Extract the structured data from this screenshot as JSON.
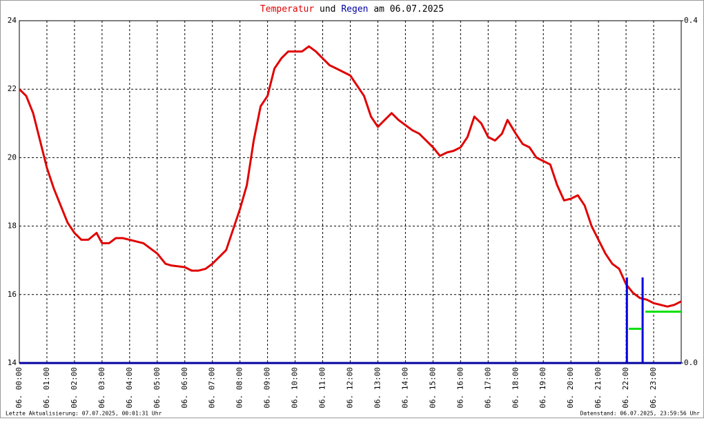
{
  "chart_data": {
    "type": "line",
    "title_temp": "Temperatur",
    "title_und": "und",
    "title_rain": "Regen",
    "title_date": "am 06.07.2025",
    "footer_left": "Letzte Aktualisierung: 07.07.2025, 00:01:31 Uhr",
    "footer_right": "Datenstand: 06.07.2025, 23:59:56 Uhr",
    "xlim": [
      0,
      24
    ],
    "xticks": [
      {
        "value": 0,
        "label": "06. 00:00"
      },
      {
        "value": 1,
        "label": "06. 01:00"
      },
      {
        "value": 2,
        "label": "06. 02:00"
      },
      {
        "value": 3,
        "label": "06. 03:00"
      },
      {
        "value": 4,
        "label": "06. 04:00"
      },
      {
        "value": 5,
        "label": "06. 05:00"
      },
      {
        "value": 6,
        "label": "06. 06:00"
      },
      {
        "value": 7,
        "label": "06. 07:00"
      },
      {
        "value": 8,
        "label": "06. 08:00"
      },
      {
        "value": 9,
        "label": "06. 09:00"
      },
      {
        "value": 10,
        "label": "06. 10:00"
      },
      {
        "value": 11,
        "label": "06. 11:00"
      },
      {
        "value": 12,
        "label": "06. 12:00"
      },
      {
        "value": 13,
        "label": "06. 13:00"
      },
      {
        "value": 14,
        "label": "06. 14:00"
      },
      {
        "value": 15,
        "label": "06. 15:00"
      },
      {
        "value": 16,
        "label": "06. 16:00"
      },
      {
        "value": 17,
        "label": "06. 17:00"
      },
      {
        "value": 18,
        "label": "06. 18:00"
      },
      {
        "value": 19,
        "label": "06. 19:00"
      },
      {
        "value": 20,
        "label": "06. 20:00"
      },
      {
        "value": 21,
        "label": "06. 21:00"
      },
      {
        "value": 22,
        "label": "06. 22:00"
      },
      {
        "value": 23,
        "label": "06. 23:00"
      }
    ],
    "ylim": [
      14,
      24
    ],
    "yticks": [
      14,
      16,
      18,
      20,
      22,
      24
    ],
    "y2lim": [
      0,
      0.4
    ],
    "y2ticks": [
      {
        "value": 0,
        "label": "0.0"
      },
      {
        "value": 0.4,
        "label": "0.4"
      }
    ],
    "grid": true,
    "series": [
      {
        "type": "line",
        "color": "#e00000",
        "x": [
          0,
          0.25,
          0.5,
          0.75,
          1,
          1.25,
          1.5,
          1.75,
          2,
          2.25,
          2.5,
          2.8,
          3,
          3.25,
          3.5,
          3.75,
          4,
          4.5,
          5,
          5.3,
          5.5,
          6,
          6.25,
          6.5,
          6.75,
          7,
          7.5,
          8,
          8.25,
          8.5,
          8.75,
          9,
          9.25,
          9.5,
          9.75,
          10,
          10.25,
          10.5,
          10.75,
          11,
          11.25,
          11.5,
          12,
          12.25,
          12.5,
          12.75,
          13,
          13.25,
          13.5,
          13.75,
          14,
          14.25,
          14.5,
          14.75,
          15,
          15.25,
          15.5,
          15.75,
          16,
          16.25,
          16.5,
          16.75,
          17,
          17.25,
          17.5,
          17.7,
          18,
          18.25,
          18.5,
          18.75,
          19,
          19.25,
          19.5,
          19.75,
          20,
          20.25,
          20.5,
          20.75,
          21,
          21.25,
          21.5,
          21.75,
          22,
          22.25,
          22.5,
          22.75,
          23,
          23.25,
          23.5,
          23.75,
          24
        ],
        "values": [
          22.0,
          21.8,
          21.3,
          20.5,
          19.7,
          19.1,
          18.6,
          18.1,
          17.8,
          17.6,
          17.6,
          17.8,
          17.5,
          17.5,
          17.65,
          17.65,
          17.6,
          17.5,
          17.2,
          16.9,
          16.85,
          16.8,
          16.7,
          16.7,
          16.75,
          16.9,
          17.3,
          18.5,
          19.2,
          20.5,
          21.5,
          21.8,
          22.6,
          22.9,
          23.1,
          23.1,
          23.1,
          23.25,
          23.1,
          22.9,
          22.7,
          22.6,
          22.4,
          22.1,
          21.8,
          21.2,
          20.9,
          21.1,
          21.3,
          21.1,
          20.95,
          20.8,
          20.7,
          20.5,
          20.3,
          20.05,
          20.15,
          20.2,
          20.3,
          20.6,
          21.2,
          21.0,
          20.6,
          20.5,
          20.7,
          21.1,
          20.7,
          20.4,
          20.3,
          20.0,
          19.9,
          19.8,
          19.2,
          18.75,
          18.8,
          18.9,
          18.6,
          18.0,
          17.6,
          17.2,
          16.9,
          16.75,
          16.3,
          16.05,
          15.9,
          15.85,
          15.75,
          15.7,
          15.65,
          15.7,
          15.8
        ]
      },
      {
        "type": "bar",
        "color": "#0000e0",
        "axis": "y2",
        "x": [
          22.03,
          22.6
        ],
        "values": [
          0.1,
          0.1
        ]
      },
      {
        "type": "line",
        "color": "#00e000",
        "axis": "y2",
        "x": [
          22.1,
          22.55,
          22.6,
          22.7,
          24
        ],
        "values": [
          0.04,
          0.04,
          null,
          0.06,
          0.06
        ]
      }
    ]
  }
}
